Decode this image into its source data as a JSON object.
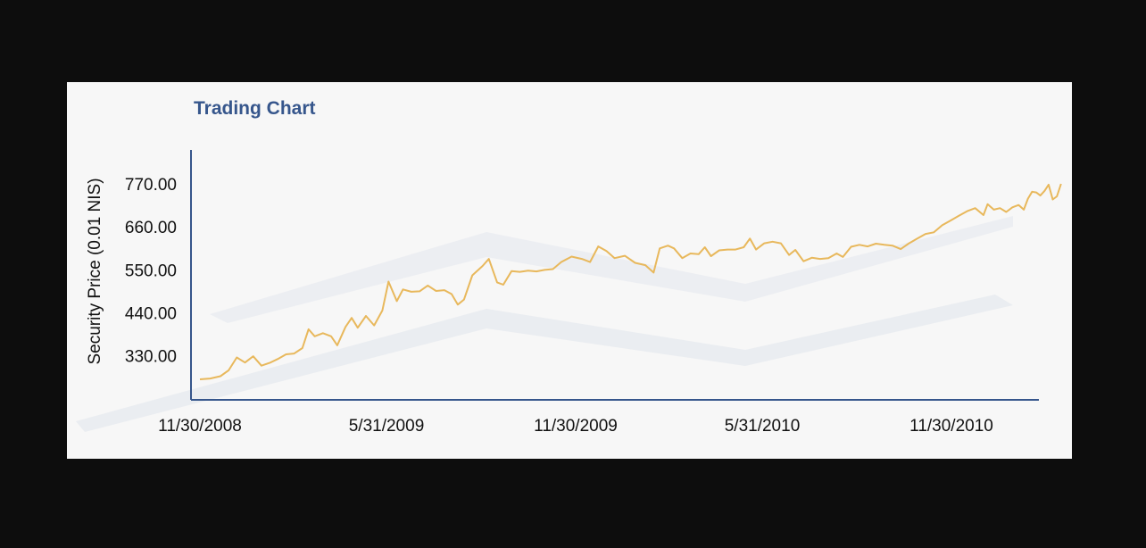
{
  "panel": {
    "title": "Trading Chart"
  },
  "colors": {
    "background": "#0d0d0d",
    "panel": "#f7f7f7",
    "title": "#36568c",
    "axis": "#36568c",
    "line": "#e8b85c",
    "watermark": "#e4e8ee"
  },
  "chart_data": {
    "type": "line",
    "title": "Trading Chart",
    "xlabel": "",
    "ylabel": "Security Price (0.01 NIS)",
    "x_ticks": [
      "11/30/2008",
      "5/31/2009",
      "11/30/2009",
      "5/31/2010",
      "11/30/2010"
    ],
    "y_ticks": [
      "330.00",
      "440.00",
      "550.00",
      "660.00",
      "770.00"
    ],
    "ylim": [
      270,
      825
    ],
    "xlim": [
      "2008-11-30",
      "2011-02-15"
    ],
    "grid": false,
    "series": [
      {
        "points": [
          [
            "2008-11-30",
            270
          ],
          [
            "2008-12-10",
            272
          ],
          [
            "2008-12-20",
            278
          ],
          [
            "2008-12-28",
            293
          ],
          [
            "2009-01-05",
            326
          ],
          [
            "2009-01-13",
            313
          ],
          [
            "2009-01-21",
            329
          ],
          [
            "2009-01-29",
            305
          ],
          [
            "2009-02-06",
            312
          ],
          [
            "2009-02-14",
            322
          ],
          [
            "2009-02-22",
            334
          ],
          [
            "2009-03-02",
            336
          ],
          [
            "2009-03-10",
            350
          ],
          [
            "2009-03-16",
            398
          ],
          [
            "2009-03-22",
            380
          ],
          [
            "2009-03-30",
            388
          ],
          [
            "2009-04-07",
            380
          ],
          [
            "2009-04-13",
            357
          ],
          [
            "2009-04-21",
            404
          ],
          [
            "2009-04-27",
            427
          ],
          [
            "2009-05-03",
            402
          ],
          [
            "2009-05-11",
            432
          ],
          [
            "2009-05-19",
            408
          ],
          [
            "2009-05-27",
            446
          ],
          [
            "2009-06-02",
            520
          ],
          [
            "2009-06-10",
            470
          ],
          [
            "2009-06-16",
            500
          ],
          [
            "2009-06-24",
            494
          ],
          [
            "2009-07-02",
            495
          ],
          [
            "2009-07-10",
            510
          ],
          [
            "2009-07-18",
            496
          ],
          [
            "2009-07-26",
            498
          ],
          [
            "2009-08-02",
            488
          ],
          [
            "2009-08-08",
            461
          ],
          [
            "2009-08-14",
            474
          ],
          [
            "2009-08-22",
            536
          ],
          [
            "2009-09-01",
            560
          ],
          [
            "2009-09-07",
            578
          ],
          [
            "2009-09-15",
            518
          ],
          [
            "2009-09-21",
            512
          ],
          [
            "2009-09-29",
            547
          ],
          [
            "2009-10-07",
            545
          ],
          [
            "2009-10-15",
            548
          ],
          [
            "2009-10-23",
            546
          ],
          [
            "2009-10-31",
            550
          ],
          [
            "2009-11-08",
            552
          ],
          [
            "2009-11-16",
            570
          ],
          [
            "2009-11-26",
            584
          ],
          [
            "2009-12-06",
            578
          ],
          [
            "2009-12-14",
            570
          ],
          [
            "2009-12-22",
            610
          ],
          [
            "2009-12-30",
            598
          ],
          [
            "2010-01-07",
            580
          ],
          [
            "2010-01-17",
            586
          ],
          [
            "2010-01-27",
            568
          ],
          [
            "2010-02-06",
            562
          ],
          [
            "2010-02-14",
            543
          ],
          [
            "2010-02-20",
            605
          ],
          [
            "2010-02-28",
            612
          ],
          [
            "2010-03-06",
            605
          ],
          [
            "2010-03-14",
            580
          ],
          [
            "2010-03-22",
            592
          ],
          [
            "2010-03-30",
            590
          ],
          [
            "2010-04-05",
            608
          ],
          [
            "2010-04-11",
            585
          ],
          [
            "2010-04-19",
            600
          ],
          [
            "2010-04-27",
            602
          ],
          [
            "2010-05-05",
            602
          ],
          [
            "2010-05-13",
            608
          ],
          [
            "2010-05-19",
            630
          ],
          [
            "2010-05-25",
            602
          ],
          [
            "2010-06-02",
            618
          ],
          [
            "2010-06-10",
            622
          ],
          [
            "2010-06-18",
            618
          ],
          [
            "2010-06-26",
            588
          ],
          [
            "2010-07-02",
            601
          ],
          [
            "2010-07-10",
            572
          ],
          [
            "2010-07-18",
            581
          ],
          [
            "2010-07-26",
            578
          ],
          [
            "2010-08-03",
            580
          ],
          [
            "2010-08-11",
            592
          ],
          [
            "2010-08-17",
            583
          ],
          [
            "2010-08-25",
            609
          ],
          [
            "2010-09-02",
            614
          ],
          [
            "2010-09-10",
            610
          ],
          [
            "2010-09-18",
            617
          ],
          [
            "2010-09-26",
            614
          ],
          [
            "2010-10-04",
            612
          ],
          [
            "2010-10-12",
            603
          ],
          [
            "2010-10-20",
            618
          ],
          [
            "2010-10-28",
            630
          ],
          [
            "2010-11-05",
            642
          ],
          [
            "2010-11-13",
            646
          ],
          [
            "2010-11-21",
            664
          ],
          [
            "2010-11-29",
            676
          ],
          [
            "2010-12-07",
            688
          ],
          [
            "2010-12-15",
            700
          ],
          [
            "2010-12-23",
            708
          ],
          [
            "2010-12-31",
            690
          ],
          [
            "2011-01-04",
            718
          ],
          [
            "2011-01-10",
            704
          ],
          [
            "2011-01-16",
            708
          ],
          [
            "2011-01-22",
            698
          ],
          [
            "2011-01-28",
            710
          ],
          [
            "2011-02-03",
            716
          ],
          [
            "2011-02-08",
            704
          ],
          [
            "2011-02-12",
            732
          ],
          [
            "2011-02-16",
            750
          ],
          [
            "2011-02-20",
            748
          ],
          [
            "2011-02-24",
            740
          ],
          [
            "2011-02-28",
            752
          ],
          [
            "2011-03-04",
            768
          ],
          [
            "2011-03-08",
            730
          ],
          [
            "2011-03-12",
            738
          ],
          [
            "2011-03-16",
            770
          ]
        ]
      }
    ]
  }
}
